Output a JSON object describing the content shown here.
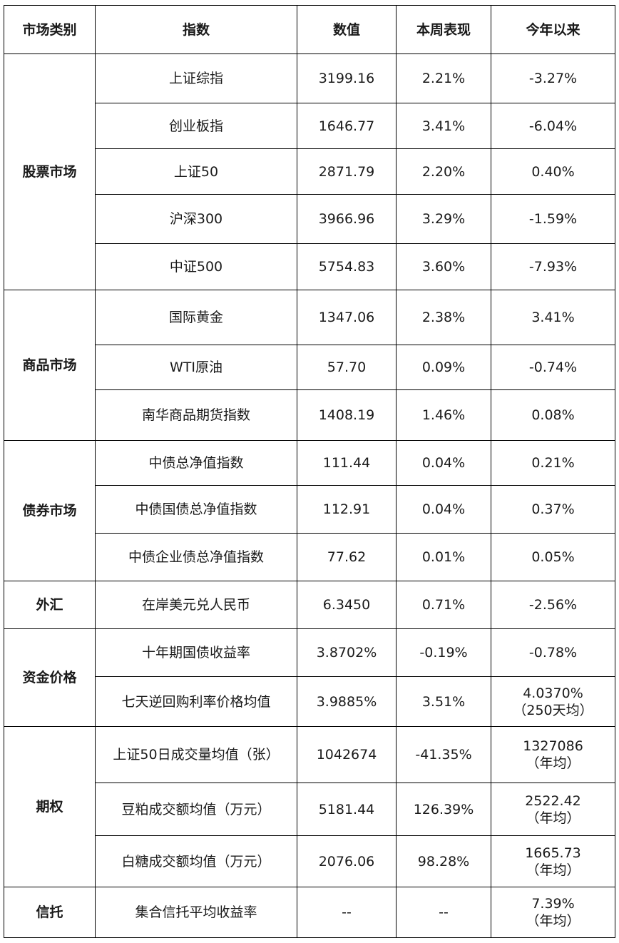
{
  "headers": [
    "市场类别",
    "指数",
    "数值",
    "本周表现",
    "今年以来"
  ],
  "groups": [
    {
      "category": "股票市场",
      "rows": [
        {
          "index": "上证综指",
          "value": "3199.16",
          "week": "2.21%",
          "ytd": "-3.27%"
        },
        {
          "index": "创业板指",
          "value": "1646.77",
          "week": "3.41%",
          "ytd": "-6.04%"
        },
        {
          "index": "上证50",
          "value": "2871.79",
          "week": "2.20%",
          "ytd": "0.40%"
        },
        {
          "index": "沪深300",
          "value": "3966.96",
          "week": "3.29%",
          "ytd": "-1.59%"
        },
        {
          "index": "中证500",
          "value": "5754.83",
          "week": "3.60%",
          "ytd": "-7.93%"
        }
      ]
    },
    {
      "category": "商品市场",
      "rows": [
        {
          "index": "国际黄金",
          "value": "1347.06",
          "week": "2.38%",
          "ytd": "3.41%"
        },
        {
          "index": "WTI原油",
          "value": "57.70",
          "week": "0.09%",
          "ytd": "-0.74%"
        },
        {
          "index": "南华商品期货指数",
          "value": "1408.19",
          "week": "1.46%",
          "ytd": "0.08%"
        }
      ]
    },
    {
      "category": "债券市场",
      "rows": [
        {
          "index": "中债总净值指数",
          "value": "111.44",
          "week": "0.04%",
          "ytd": "0.21%"
        },
        {
          "index": "中债国债总净值指数",
          "value": "112.91",
          "week": "0.04%",
          "ytd": "0.37%"
        },
        {
          "index": "中债企业债总净值指数",
          "value": "77.62",
          "week": "0.01%",
          "ytd": "0.05%"
        }
      ]
    },
    {
      "category": "外汇",
      "rows": [
        {
          "index": "在岸美元兑人民币",
          "value": "6.3450",
          "week": "0.71%",
          "ytd": "-2.56%"
        }
      ]
    },
    {
      "category": "资金价格",
      "rows": [
        {
          "index": "十年期国债收益率",
          "value": "3.8702%",
          "week": "-0.19%",
          "ytd": "-0.78%"
        },
        {
          "index": "七天逆回购利率价格均值",
          "value": "3.9885%",
          "week": "3.51%",
          "ytd": "4.0370%",
          "ytd_note": "（250天均）"
        }
      ]
    },
    {
      "category": "期权",
      "rows": [
        {
          "index": "上证50日成交量均值（张）",
          "value": "1042674",
          "week": "-41.35%",
          "ytd": "1327086",
          "ytd_note": "（年均）"
        },
        {
          "index": "豆粕成交额均值（万元）",
          "value": "5181.44",
          "week": "126.39%",
          "ytd": "2522.42",
          "ytd_note": "（年均）"
        },
        {
          "index": "白糖成交额均值（万元）",
          "value": "2076.06",
          "week": "98.28%",
          "ytd": "1665.73",
          "ytd_note": "（年均）"
        }
      ]
    },
    {
      "category": "信托",
      "rows": [
        {
          "index": "集合信托平均收益率",
          "value": "--",
          "week": "--",
          "ytd": "7.39%",
          "ytd_note": "（年均）"
        }
      ]
    }
  ]
}
